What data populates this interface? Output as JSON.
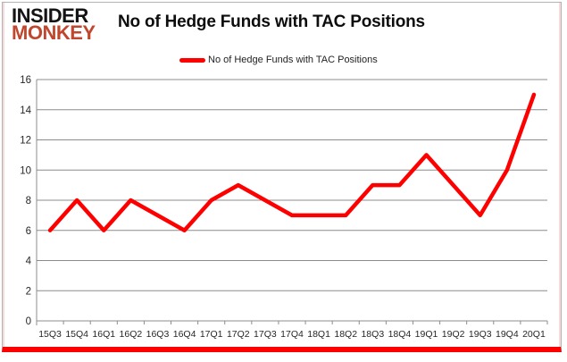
{
  "logo": {
    "line1": "INSIDER",
    "line2": "MONKEY",
    "line2_color": "#c0472e"
  },
  "header": {
    "title": "No of Hedge Funds with TAC Positions"
  },
  "legend": {
    "label": "No of Hedge Funds with TAC Positions",
    "swatch_color": "#fe0000"
  },
  "chart_data": {
    "type": "line",
    "title": "No of Hedge Funds with TAC Positions",
    "categories": [
      "15Q3",
      "15Q4",
      "16Q1",
      "16Q2",
      "16Q3",
      "16Q4",
      "17Q1",
      "17Q2",
      "17Q3",
      "17Q4",
      "18Q1",
      "18Q2",
      "18Q3",
      "18Q4",
      "19Q1",
      "19Q2",
      "19Q3",
      "19Q4",
      "20Q1"
    ],
    "series": [
      {
        "name": "No of Hedge Funds with TAC Positions",
        "values": [
          6,
          8,
          6,
          8,
          7,
          6,
          8,
          9,
          8,
          7,
          7,
          7,
          9,
          9,
          11,
          9,
          7,
          10,
          15
        ],
        "color": "#fe0000"
      }
    ],
    "xlabel": "",
    "ylabel": "",
    "ylim": [
      0,
      16
    ],
    "ytick_step": 2,
    "grid": true,
    "legend_position": "top-center",
    "colors": {
      "grid": "#8c8c8c",
      "axis": "#8c8c8c",
      "tick_label": "#262626",
      "card_bottom_bar": "#fe0000"
    }
  }
}
